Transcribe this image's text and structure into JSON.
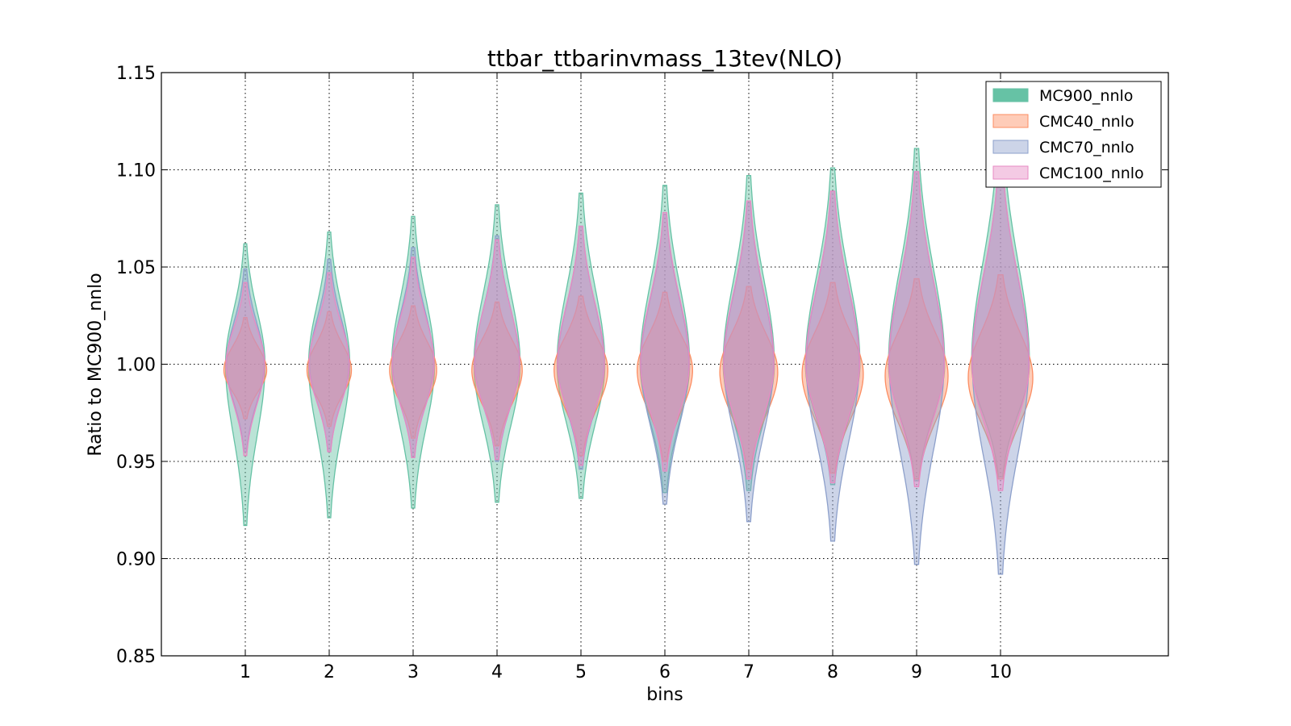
{
  "chart_data": {
    "type": "violin",
    "title": "ttbar_ttbarinvmass_13tev(NLO)",
    "xlabel": "bins",
    "ylabel": "Ratio to MC900_nnlo",
    "ylim": [
      0.85,
      1.15
    ],
    "xlim": [
      0.0,
      12.0
    ],
    "yticks": [
      "0.85",
      "0.90",
      "0.95",
      "1.00",
      "1.05",
      "1.10",
      "1.15"
    ],
    "yticks_values": [
      0.85,
      0.9,
      0.95,
      1.0,
      1.05,
      1.1,
      1.15
    ],
    "categories": [
      "1",
      "2",
      "3",
      "4",
      "5",
      "6",
      "7",
      "8",
      "9",
      "10"
    ],
    "grid": true,
    "legend_position": "top-right",
    "series": [
      {
        "name": "MC900_nnlo",
        "color": "#66c2a5",
        "ymin": [
          0.917,
          0.921,
          0.926,
          0.929,
          0.931,
          0.934,
          0.935,
          0.938,
          0.94,
          0.942
        ],
        "ymax": [
          1.062,
          1.068,
          1.076,
          1.082,
          1.088,
          1.092,
          1.097,
          1.101,
          1.111,
          1.12
        ],
        "median": [
          1.0,
          1.0,
          1.0,
          1.0,
          1.0,
          1.0,
          1.0,
          1.0,
          1.0,
          1.0
        ],
        "max_half_width": [
          0.235,
          0.245,
          0.255,
          0.275,
          0.285,
          0.295,
          0.305,
          0.325,
          0.335,
          0.345
        ]
      },
      {
        "name": "CMC40_nnlo",
        "color": "#fc8d62",
        "ymin": [
          0.972,
          0.968,
          0.962,
          0.958,
          0.953,
          0.95,
          0.946,
          0.944,
          0.941,
          0.941
        ],
        "ymax": [
          1.024,
          1.027,
          1.03,
          1.032,
          1.035,
          1.037,
          1.04,
          1.042,
          1.044,
          1.046
        ],
        "median": [
          0.997,
          0.997,
          0.997,
          0.997,
          0.997,
          0.997,
          0.996,
          0.995,
          0.994,
          0.993
        ],
        "max_half_width": [
          0.255,
          0.265,
          0.28,
          0.3,
          0.32,
          0.33,
          0.345,
          0.365,
          0.375,
          0.385
        ]
      },
      {
        "name": "CMC70_nnlo",
        "color": "#8da0cb",
        "ymin": [
          0.955,
          0.955,
          0.952,
          0.95,
          0.946,
          0.928,
          0.919,
          0.909,
          0.897,
          0.892
        ],
        "ymax": [
          1.049,
          1.054,
          1.06,
          1.066,
          1.071,
          1.077,
          1.083,
          1.089,
          1.099,
          1.104
        ],
        "median": [
          1.0,
          1.0,
          1.0,
          1.0,
          1.0,
          1.0,
          1.0,
          1.0,
          1.0,
          1.0
        ],
        "max_half_width": [
          0.225,
          0.235,
          0.245,
          0.265,
          0.275,
          0.285,
          0.295,
          0.315,
          0.325,
          0.335
        ]
      },
      {
        "name": "CMC100_nnlo",
        "color": "#e78ac3",
        "ymin": [
          0.953,
          0.955,
          0.952,
          0.951,
          0.948,
          0.945,
          0.941,
          0.939,
          0.937,
          0.935
        ],
        "ymax": [
          1.042,
          1.047,
          1.055,
          1.064,
          1.071,
          1.078,
          1.084,
          1.089,
          1.099,
          1.104
        ],
        "median": [
          1.0,
          1.0,
          1.0,
          1.0,
          1.0,
          1.0,
          1.0,
          1.0,
          1.0,
          1.0
        ],
        "max_half_width": [
          0.23,
          0.24,
          0.25,
          0.27,
          0.28,
          0.29,
          0.3,
          0.32,
          0.33,
          0.34
        ]
      }
    ]
  }
}
